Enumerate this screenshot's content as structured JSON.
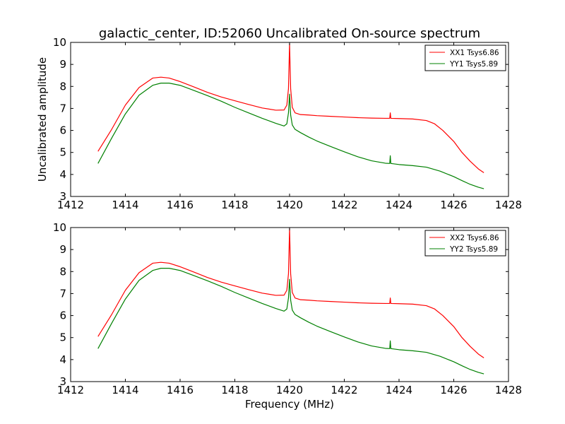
{
  "figure": {
    "title": "galactic_center, ID:52060 Uncalibrated On-source spectrum",
    "xlabel": "Frequency (MHz)",
    "ylabel": "Uncalibrated amplitude"
  },
  "chart_data": [
    {
      "type": "line",
      "xlim": [
        1412,
        1428
      ],
      "ylim": [
        3,
        10
      ],
      "xticks": [
        1412,
        1414,
        1416,
        1418,
        1420,
        1422,
        1424,
        1426,
        1428
      ],
      "yticks": [
        3,
        4,
        5,
        6,
        7,
        8,
        9,
        10
      ],
      "legend_position": "top-right",
      "series": [
        {
          "name": "XX1 Tsys6.86",
          "color": "#ff0000",
          "x": [
            1413.0,
            1413.5,
            1414.0,
            1414.5,
            1415.0,
            1415.3,
            1415.6,
            1416.0,
            1416.5,
            1417.0,
            1417.5,
            1418.0,
            1418.5,
            1419.0,
            1419.5,
            1419.8,
            1419.9,
            1419.96,
            1420.0,
            1420.04,
            1420.1,
            1420.2,
            1420.4,
            1420.7,
            1421.0,
            1421.5,
            1422.0,
            1422.5,
            1423.0,
            1423.5,
            1423.66,
            1423.68,
            1423.7,
            1424.0,
            1424.5,
            1425.0,
            1425.3,
            1425.6,
            1426.0,
            1426.3,
            1426.6,
            1426.9,
            1427.1
          ],
          "y": [
            5.05,
            6.05,
            7.15,
            7.95,
            8.38,
            8.42,
            8.38,
            8.22,
            7.98,
            7.73,
            7.52,
            7.35,
            7.18,
            7.02,
            6.92,
            6.93,
            7.15,
            7.9,
            9.95,
            7.9,
            7.05,
            6.8,
            6.72,
            6.7,
            6.67,
            6.64,
            6.61,
            6.58,
            6.56,
            6.55,
            6.55,
            6.8,
            6.55,
            6.54,
            6.52,
            6.45,
            6.3,
            6.0,
            5.5,
            5.0,
            4.6,
            4.25,
            4.08
          ]
        },
        {
          "name": "YY1 Tsys5.89",
          "color": "#008000",
          "x": [
            1413.0,
            1413.5,
            1414.0,
            1414.5,
            1415.0,
            1415.3,
            1415.6,
            1416.0,
            1416.5,
            1417.0,
            1417.5,
            1418.0,
            1418.5,
            1419.0,
            1419.5,
            1419.8,
            1419.9,
            1419.96,
            1420.0,
            1420.04,
            1420.1,
            1420.2,
            1420.4,
            1420.7,
            1421.0,
            1421.5,
            1422.0,
            1422.5,
            1423.0,
            1423.5,
            1423.66,
            1423.68,
            1423.7,
            1424.0,
            1424.5,
            1425.0,
            1425.5,
            1426.0,
            1426.3,
            1426.6,
            1426.9,
            1427.1
          ],
          "y": [
            4.5,
            5.65,
            6.75,
            7.6,
            8.05,
            8.15,
            8.15,
            8.05,
            7.82,
            7.58,
            7.33,
            7.05,
            6.8,
            6.55,
            6.32,
            6.2,
            6.3,
            6.8,
            7.65,
            6.7,
            6.25,
            6.05,
            5.9,
            5.7,
            5.52,
            5.27,
            5.03,
            4.8,
            4.62,
            4.51,
            4.5,
            4.85,
            4.5,
            4.45,
            4.4,
            4.33,
            4.15,
            3.9,
            3.72,
            3.55,
            3.42,
            3.35
          ]
        }
      ]
    },
    {
      "type": "line",
      "xlim": [
        1412,
        1428
      ],
      "ylim": [
        3,
        10
      ],
      "xticks": [
        1412,
        1414,
        1416,
        1418,
        1420,
        1422,
        1424,
        1426,
        1428
      ],
      "yticks": [
        3,
        4,
        5,
        6,
        7,
        8,
        9,
        10
      ],
      "legend_position": "top-right",
      "series": [
        {
          "name": "XX2 Tsys6.86",
          "color": "#ff0000",
          "x": [
            1413.0,
            1413.5,
            1414.0,
            1414.5,
            1415.0,
            1415.3,
            1415.6,
            1416.0,
            1416.5,
            1417.0,
            1417.5,
            1418.0,
            1418.5,
            1419.0,
            1419.5,
            1419.8,
            1419.9,
            1419.96,
            1420.0,
            1420.04,
            1420.1,
            1420.2,
            1420.4,
            1420.7,
            1421.0,
            1421.5,
            1422.0,
            1422.5,
            1423.0,
            1423.5,
            1423.66,
            1423.68,
            1423.7,
            1424.0,
            1424.5,
            1425.0,
            1425.3,
            1425.6,
            1426.0,
            1426.3,
            1426.6,
            1426.9,
            1427.1
          ],
          "y": [
            5.05,
            6.05,
            7.15,
            7.95,
            8.38,
            8.42,
            8.38,
            8.22,
            7.98,
            7.73,
            7.52,
            7.35,
            7.18,
            7.02,
            6.92,
            6.93,
            7.15,
            7.9,
            9.95,
            7.9,
            7.05,
            6.8,
            6.72,
            6.7,
            6.67,
            6.64,
            6.61,
            6.58,
            6.56,
            6.55,
            6.55,
            6.8,
            6.55,
            6.54,
            6.52,
            6.45,
            6.3,
            6.0,
            5.5,
            5.0,
            4.6,
            4.25,
            4.08
          ]
        },
        {
          "name": "YY2 Tsys5.89",
          "color": "#008000",
          "x": [
            1413.0,
            1413.5,
            1414.0,
            1414.5,
            1415.0,
            1415.3,
            1415.6,
            1416.0,
            1416.5,
            1417.0,
            1417.5,
            1418.0,
            1418.5,
            1419.0,
            1419.5,
            1419.8,
            1419.9,
            1419.96,
            1420.0,
            1420.04,
            1420.1,
            1420.2,
            1420.4,
            1420.7,
            1421.0,
            1421.5,
            1422.0,
            1422.5,
            1423.0,
            1423.5,
            1423.66,
            1423.68,
            1423.7,
            1424.0,
            1424.5,
            1425.0,
            1425.5,
            1426.0,
            1426.3,
            1426.6,
            1426.9,
            1427.1
          ],
          "y": [
            4.5,
            5.65,
            6.75,
            7.6,
            8.05,
            8.15,
            8.15,
            8.05,
            7.82,
            7.58,
            7.33,
            7.05,
            6.8,
            6.55,
            6.32,
            6.2,
            6.3,
            6.8,
            7.65,
            6.7,
            6.25,
            6.05,
            5.9,
            5.7,
            5.52,
            5.27,
            5.03,
            4.8,
            4.62,
            4.51,
            4.5,
            4.85,
            4.5,
            4.45,
            4.4,
            4.33,
            4.15,
            3.9,
            3.72,
            3.55,
            3.42,
            3.35
          ]
        }
      ]
    }
  ]
}
